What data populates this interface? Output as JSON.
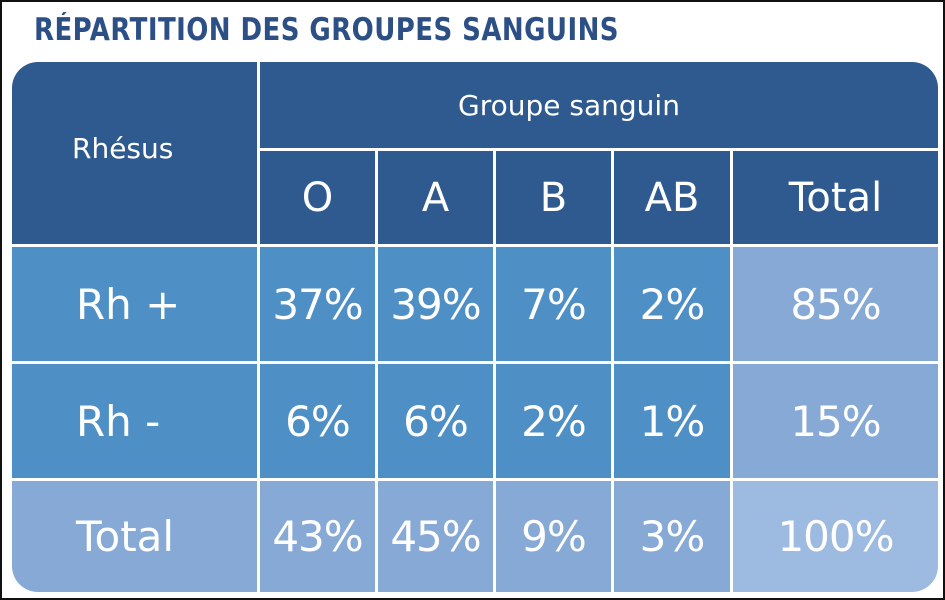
{
  "title": "RÉPARTITION DES GROUPES SANGUINS",
  "chart_data": {
    "type": "table",
    "title": "RÉPARTITION DES GROUPES SANGUINS",
    "corner_header": "Rhésus",
    "group_header": "Groupe sanguin",
    "columns": [
      "O",
      "A",
      "B",
      "AB",
      "Total"
    ],
    "rows": [
      {
        "label": "Rh +",
        "values": [
          "37%",
          "39%",
          "7%",
          "2%",
          "85%"
        ]
      },
      {
        "label": "Rh -",
        "values": [
          "6%",
          "6%",
          "2%",
          "1%",
          "15%"
        ]
      },
      {
        "label": "Total",
        "values": [
          "43%",
          "45%",
          "9%",
          "3%",
          "100%"
        ]
      }
    ]
  },
  "colors": {
    "title": "#2c4f86",
    "header": "#2f5a8f",
    "body": "#4e8fc6",
    "total": "#86a9d6",
    "grand_total": "#9dbae0",
    "grid": "#ffffff"
  }
}
